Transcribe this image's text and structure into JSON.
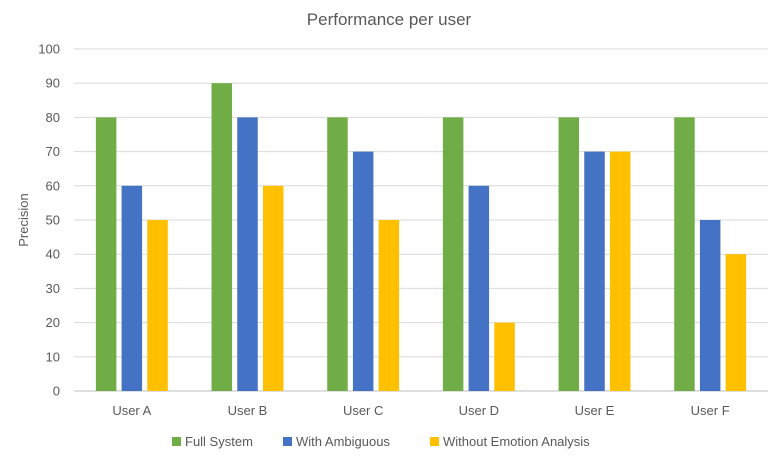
{
  "chart_data": {
    "type": "bar",
    "title": "Performance per user",
    "xlabel": "",
    "ylabel": "Precision",
    "ylim": [
      0,
      100
    ],
    "yticks": [
      0,
      10,
      20,
      30,
      40,
      50,
      60,
      70,
      80,
      90,
      100
    ],
    "categories": [
      "User A",
      "User B",
      "User C",
      "User D",
      "User E",
      "User F"
    ],
    "series": [
      {
        "name": "Full System",
        "color": "#70ad47",
        "values": [
          80,
          90,
          80,
          80,
          80,
          80
        ]
      },
      {
        "name": "With Ambiguous",
        "color": "#4472c4",
        "values": [
          60,
          80,
          70,
          60,
          70,
          50
        ]
      },
      {
        "name": "Without Emotion Analysis",
        "color": "#ffc000",
        "values": [
          50,
          60,
          50,
          20,
          70,
          40
        ]
      }
    ],
    "grid": true,
    "legend": "bottom"
  }
}
